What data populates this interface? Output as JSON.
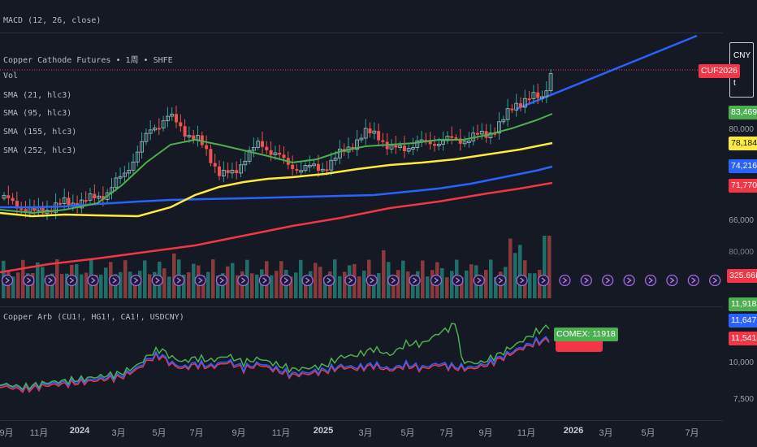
{
  "top": {
    "macd_label": "MACD (12, 26, close)"
  },
  "main": {
    "symbol_title": "Copper Cathode Futures • 1周 • SHFE",
    "indicators": [
      "Vol",
      "SMA (21, hlc3)",
      "SMA (95, hlc3)",
      "SMA (155, hlc3)",
      "SMA (252, hlc3)"
    ],
    "currency_box": {
      "line1": "CNY",
      "line2": "t"
    },
    "price_tag": "CUF2026",
    "price_scale": [
      "80,000",
      "66,000",
      "80,000"
    ],
    "sma_tags": [
      {
        "value": "83,469",
        "color": "#4caf50"
      },
      {
        "value": "78,184",
        "color": "#ffeb3b"
      },
      {
        "value": "74,216",
        "color": "#2962ff"
      },
      {
        "value": "71,770",
        "color": "#f23645"
      }
    ],
    "volume_tag": "325.66K"
  },
  "lower": {
    "label": "Copper Arb (CU1!, HG1!, CA1!, USDCNY)",
    "comex_label": "COMEX: 11918",
    "tags": [
      {
        "value": "11,918",
        "color": "#4caf50"
      },
      {
        "value": "11,647",
        "color": "#2962ff"
      },
      {
        "value": "11,541",
        "color": "#f23645"
      }
    ],
    "scale": [
      "10,000",
      "7,500"
    ]
  },
  "x_axis": [
    {
      "label": "9月",
      "bold": false
    },
    {
      "label": "11月",
      "bold": false
    },
    {
      "label": "2024",
      "bold": true
    },
    {
      "label": "3月",
      "bold": false
    },
    {
      "label": "5月",
      "bold": false
    },
    {
      "label": "7月",
      "bold": false
    },
    {
      "label": "9月",
      "bold": false
    },
    {
      "label": "11月",
      "bold": false
    },
    {
      "label": "2025",
      "bold": true
    },
    {
      "label": "3月",
      "bold": false
    },
    {
      "label": "5月",
      "bold": false
    },
    {
      "label": "7月",
      "bold": false
    },
    {
      "label": "9月",
      "bold": false
    },
    {
      "label": "11月",
      "bold": false
    },
    {
      "label": "2026",
      "bold": true
    },
    {
      "label": "3月",
      "bold": false
    },
    {
      "label": "5月",
      "bold": false
    },
    {
      "label": "7月",
      "bold": false
    }
  ]
}
